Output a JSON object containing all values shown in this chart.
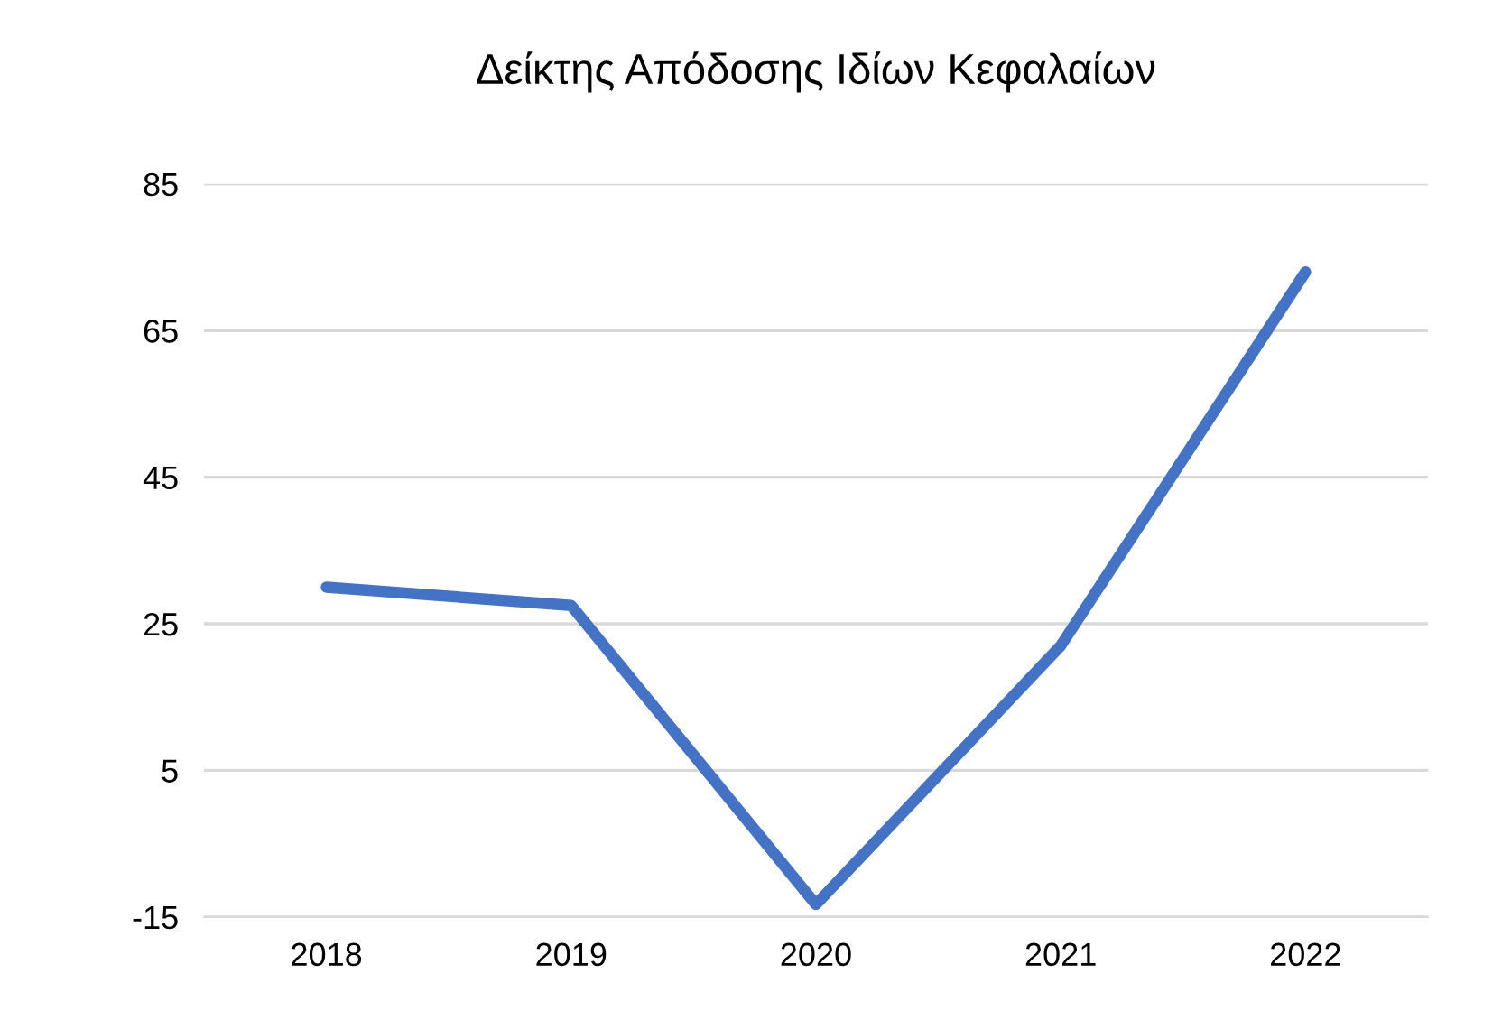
{
  "chart_data": {
    "type": "line",
    "title": "Δείκτης Απόδοσης Ιδίων Κεφαλαίων",
    "categories": [
      "2018",
      "2019",
      "2020",
      "2021",
      "2022"
    ],
    "series": [
      {
        "color": "#4472c4",
        "values": [
          30,
          27.5,
          -13.3,
          22,
          73
        ]
      }
    ],
    "ylim": [
      -15,
      85
    ],
    "yticks": [
      -15,
      5,
      25,
      45,
      65,
      85
    ],
    "grid": "y",
    "marker": "none",
    "line_style": "solid"
  }
}
